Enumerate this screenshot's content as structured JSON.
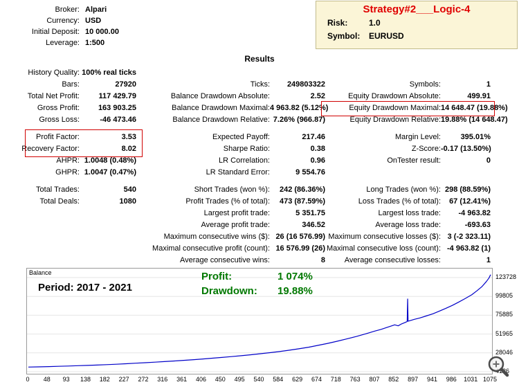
{
  "account_info": [
    {
      "label": "Broker:",
      "value": "Alpari"
    },
    {
      "label": "Currency:",
      "value": "USD"
    },
    {
      "label": "Initial Deposit:",
      "value": "10 000.00"
    },
    {
      "label": "Leverage:",
      "value": "1:500"
    }
  ],
  "strategy_box": {
    "title": "Strategy#2___Logic-4",
    "risk_label": "Risk:",
    "risk_value": "1.0",
    "symbol_label": "Symbol:",
    "symbol_value": "EURUSD"
  },
  "results_title": "Results",
  "stats": {
    "rows": [
      {
        "l1": "History Quality:",
        "v1": "100% real ticks",
        "l2": "",
        "v2": "",
        "l3": "",
        "v3": ""
      },
      {
        "l1": "Bars:",
        "v1": "27920",
        "l2": "Ticks:",
        "v2": "249803322",
        "l3": "Symbols:",
        "v3": "1"
      },
      {
        "l1": "Total Net Profit:",
        "v1": "117 429.79",
        "l2": "Balance Drawdown Absolute:",
        "v2": "2.52",
        "l3": "Equity Drawdown Absolute:",
        "v3": "499.91"
      },
      {
        "l1": "Gross Profit:",
        "v1": "163 903.25",
        "l2": "Balance Drawdown Maximal:",
        "v2": "4 963.82 (5.12%)",
        "l3": "Equity Drawdown Maximal:",
        "v3": "14 648.47 (19.88%)"
      },
      {
        "l1": "Gross Loss:",
        "v1": "-46 473.46",
        "l2": "Balance Drawdown Relative:",
        "v2": "7.26% (966.87)",
        "l3": "Equity Drawdown Relative:",
        "v3": "19.88% (14 648.47)"
      },
      {
        "gap": true
      },
      {
        "l1": "Profit Factor:",
        "v1": "3.53",
        "l2": "Expected Payoff:",
        "v2": "217.46",
        "l3": "Margin Level:",
        "v3": "395.01%"
      },
      {
        "l1": "Recovery Factor:",
        "v1": "8.02",
        "l2": "Sharpe Ratio:",
        "v2": "0.38",
        "l3": "Z-Score:",
        "v3": "-0.17 (13.50%)"
      },
      {
        "l1": "AHPR:",
        "v1": "1.0048 (0.48%)",
        "l2": "LR Correlation:",
        "v2": "0.96",
        "l3": "OnTester result:",
        "v3": "0"
      },
      {
        "l1": "GHPR:",
        "v1": "1.0047 (0.47%)",
        "l2": "LR Standard Error:",
        "v2": "9 554.76",
        "l3": "",
        "v3": ""
      },
      {
        "gap": true
      },
      {
        "l1": "Total Trades:",
        "v1": "540",
        "l2": "Short Trades (won %):",
        "v2": "242 (86.36%)",
        "l3": "Long Trades (won %):",
        "v3": "298 (88.59%)"
      },
      {
        "l1": "Total Deals:",
        "v1": "1080",
        "l2": "Profit Trades (% of total):",
        "v2": "473 (87.59%)",
        "l3": "Loss Trades (% of total):",
        "v3": "67 (12.41%)"
      },
      {
        "l1": "",
        "v1": "",
        "l2": "Largest profit trade:",
        "v2": "5 351.75",
        "l3": "Largest loss trade:",
        "v3": "-4 963.82"
      },
      {
        "l1": "",
        "v1": "",
        "l2": "Average profit trade:",
        "v2": "346.52",
        "l3": "Average loss trade:",
        "v3": "-693.63"
      },
      {
        "l1": "",
        "v1": "",
        "l2": "Maximum consecutive wins ($):",
        "v2": "26 (16 576.99)",
        "l3": "Maximum consecutive losses ($):",
        "v3": "3 (-2 323.11)"
      },
      {
        "l1": "",
        "v1": "",
        "l2": "Maximal consecutive profit (count):",
        "v2": "16 576.99 (26)",
        "l3": "Maximal consecutive loss (count):",
        "v3": "-4 963.82 (1)"
      },
      {
        "l1": "",
        "v1": "",
        "l2": "Average consecutive wins:",
        "v2": "8",
        "l3": "Average consecutive losses:",
        "v3": "1"
      }
    ]
  },
  "colors": {
    "accent_red": "#e00000",
    "highlight_box_red": "#d00000",
    "strategy_box_bg": "#fbf5d7",
    "curve_blue": "#0000c8",
    "profit_green": "#007800"
  },
  "chart_data": {
    "type": "line",
    "title": "Balance",
    "series_label": "Balance",
    "period_text": "Period: 2017 - 2021",
    "profit_label": "Profit:",
    "profit_value": "1 074%",
    "drawdown_label": "Drawdown:",
    "drawdown_value": "19.88%",
    "x_max": 1075,
    "y_base": 4126,
    "x_ticks": [
      0,
      48,
      93,
      138,
      182,
      227,
      272,
      316,
      361,
      406,
      450,
      495,
      540,
      584,
      629,
      674,
      718,
      763,
      807,
      852,
      897,
      941,
      986,
      1031,
      1075
    ],
    "y_ticks": [
      123728,
      99805,
      75885,
      51965,
      28046,
      4126
    ],
    "grid": "horizontal",
    "legend_position": "none",
    "points": [
      [
        0,
        10000
      ],
      [
        24,
        10250
      ],
      [
        48,
        10600
      ],
      [
        70,
        10950
      ],
      [
        93,
        11350
      ],
      [
        115,
        11750
      ],
      [
        138,
        12150
      ],
      [
        160,
        12600
      ],
      [
        182,
        13100
      ],
      [
        205,
        13650
      ],
      [
        227,
        14250
      ],
      [
        250,
        14900
      ],
      [
        272,
        15550
      ],
      [
        295,
        16250
      ],
      [
        316,
        16950
      ],
      [
        340,
        17750
      ],
      [
        361,
        18550
      ],
      [
        385,
        19450
      ],
      [
        406,
        20350
      ],
      [
        430,
        21350
      ],
      [
        450,
        22250
      ],
      [
        472,
        23300
      ],
      [
        495,
        24450
      ],
      [
        518,
        25700
      ],
      [
        540,
        26950
      ],
      [
        562,
        28300
      ],
      [
        584,
        29750
      ],
      [
        606,
        31350
      ],
      [
        629,
        33200
      ],
      [
        652,
        35300
      ],
      [
        674,
        37650
      ],
      [
        696,
        40100
      ],
      [
        718,
        42800
      ],
      [
        740,
        45700
      ],
      [
        763,
        48900
      ],
      [
        785,
        52300
      ],
      [
        807,
        55900
      ],
      [
        820,
        57900
      ],
      [
        830,
        59700
      ],
      [
        841,
        61600
      ],
      [
        852,
        63700
      ],
      [
        860,
        62400
      ],
      [
        868,
        64900
      ],
      [
        875,
        66400
      ],
      [
        880,
        67600
      ],
      [
        881,
        67900
      ],
      [
        882,
        96500
      ],
      [
        883,
        68200
      ],
      [
        890,
        69400
      ],
      [
        897,
        70600
      ],
      [
        910,
        72400
      ],
      [
        925,
        74900
      ],
      [
        941,
        77700
      ],
      [
        955,
        80900
      ],
      [
        970,
        84400
      ],
      [
        986,
        88400
      ],
      [
        1000,
        92300
      ],
      [
        1015,
        96800
      ],
      [
        1031,
        101800
      ],
      [
        1043,
        106800
      ],
      [
        1055,
        112400
      ],
      [
        1065,
        118600
      ],
      [
        1071,
        123000
      ],
      [
        1075,
        127430
      ]
    ]
  }
}
